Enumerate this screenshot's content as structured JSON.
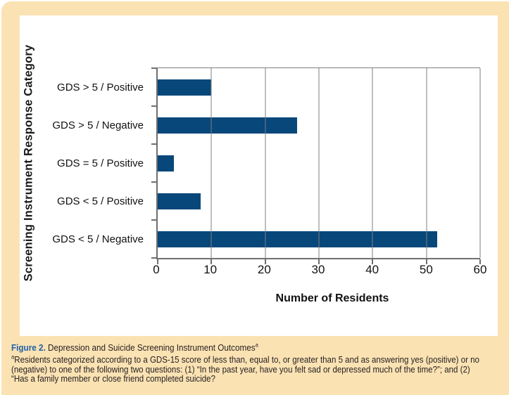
{
  "figure": {
    "caption_label": "Figure 2.",
    "caption_title": " Depression and Suicide Screening Instrument Outcomes",
    "caption_superscript": "a",
    "footnote_superscript": "a",
    "footnote_lines": [
      "Residents categorized according to a GDS-15 score of less than, equal to, or greater than 5 and as answering yes (positive) or no",
      "(negative) to one of the following two questions: (1) “In the past year, have you felt sad or depressed much of the time?”; and (2)",
      "“Has a family member or close friend completed suicide?"
    ]
  },
  "chart_data": {
    "type": "bar",
    "orientation": "horizontal",
    "title": "",
    "categories": [
      "GDS > 5 / Positive",
      "GDS > 5 / Negative",
      "GDS = 5 / Positive",
      "GDS < 5 / Positive",
      "GDS < 5 / Negative"
    ],
    "values": [
      10,
      26,
      3,
      8,
      52
    ],
    "xlabel": "Number of Residents",
    "ylabel": "Screening Instrument Response Category",
    "xlim": [
      0,
      60
    ],
    "xticks": [
      0,
      10,
      20,
      30,
      40,
      50,
      60
    ],
    "grid": "vertical-only",
    "legend": "none"
  },
  "colors": {
    "card_background": "#FBE2B3",
    "panel_background": "#FFFFFF",
    "bar": "#07477A",
    "gridline": "#7F7F7F",
    "axis": "#6F6F6F",
    "caption_label_blue": "#2060A8",
    "text": "#231F20"
  }
}
